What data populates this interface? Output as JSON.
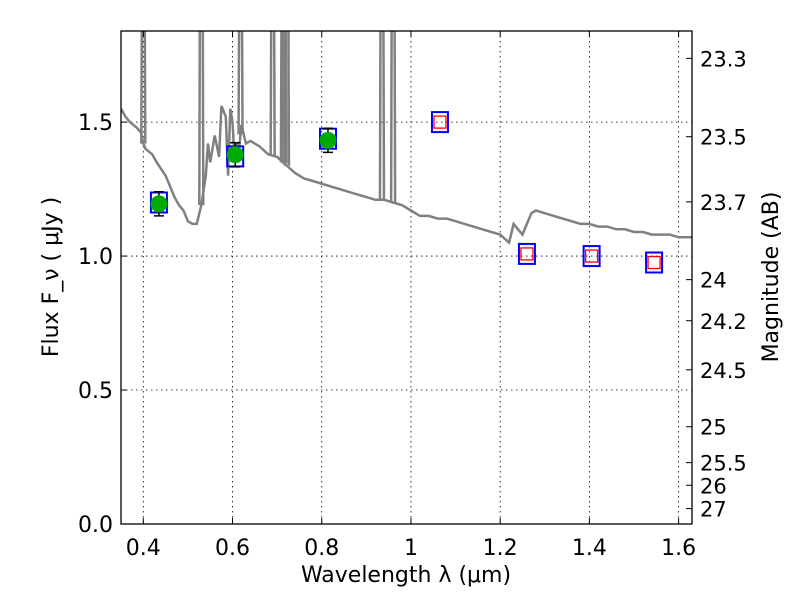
{
  "chart_data": {
    "type": "scatter",
    "xlabel": "Wavelength  λ (μm)",
    "ylabel_left": "Flux  F_ν  ( μJy )",
    "ylabel_right": "Magnitude (AB)",
    "xlim": [
      0.35,
      1.63
    ],
    "ylim": [
      0.0,
      1.84
    ],
    "x_ticks": [
      0.4,
      0.6,
      0.8,
      1.0,
      1.2,
      1.4,
      1.6
    ],
    "x_tick_labels": [
      "0.4",
      "0.6",
      "0.8",
      "1",
      "1.2",
      "1.4",
      "1.6"
    ],
    "y_ticks": [
      0.0,
      0.5,
      1.0,
      1.5
    ],
    "y_tick_labels": [
      "0.0",
      "0.5",
      "1.0",
      "1.5"
    ],
    "grid": true,
    "magnitude_axis": {
      "ticks": [
        23.3,
        23.5,
        23.7,
        24,
        24.2,
        24.5,
        25,
        25.5,
        26,
        27
      ],
      "tick_labels": [
        "23.3",
        "23.5",
        "23.7",
        "24",
        "24.2",
        "24.5",
        "25",
        "25.5",
        "26",
        "27"
      ],
      "zero_point_flux_uJy": 3631000000.0
    },
    "series": [
      {
        "kind": "observed",
        "color": "#00aa00",
        "points": [
          {
            "x": 0.435,
            "y": 1.195,
            "err": 0.045
          },
          {
            "x": 0.606,
            "y": 1.378,
            "err": 0.045
          },
          {
            "x": 0.814,
            "y": 1.432,
            "err": 0.045
          }
        ]
      },
      {
        "kind": "model_filled",
        "color": "#0000ff",
        "points": [
          {
            "x": 0.435,
            "y": 1.2
          },
          {
            "x": 0.606,
            "y": 1.372
          },
          {
            "x": 0.814,
            "y": 1.438
          }
        ]
      },
      {
        "kind": "model_open",
        "color": "#0000ff",
        "inner_color": "#ff0000",
        "points": [
          {
            "x": 1.065,
            "y": 1.5
          },
          {
            "x": 1.26,
            "y": 1.008
          },
          {
            "x": 1.405,
            "y": 1.0
          },
          {
            "x": 1.545,
            "y": 0.976
          }
        ]
      },
      {
        "kind": "sed_spectrum",
        "color": "#808080",
        "points": [
          [
            0.35,
            1.55
          ],
          [
            0.36,
            1.52
          ],
          [
            0.37,
            1.5
          ],
          [
            0.385,
            1.48
          ],
          [
            0.395,
            1.46
          ],
          [
            0.4,
            1.42
          ],
          [
            0.405,
            1.4
          ],
          [
            0.42,
            1.38
          ],
          [
            0.43,
            1.35
          ],
          [
            0.45,
            1.3
          ],
          [
            0.47,
            1.22
          ],
          [
            0.48,
            1.19
          ],
          [
            0.49,
            1.17
          ],
          [
            0.5,
            1.13
          ],
          [
            0.51,
            1.12
          ],
          [
            0.52,
            1.12
          ],
          [
            0.53,
            1.19
          ],
          [
            0.54,
            1.3
          ],
          [
            0.545,
            1.42
          ],
          [
            0.55,
            1.35
          ],
          [
            0.56,
            1.45
          ],
          [
            0.57,
            1.37
          ],
          [
            0.575,
            1.56
          ],
          [
            0.585,
            1.52
          ],
          [
            0.59,
            1.3
          ],
          [
            0.595,
            1.55
          ],
          [
            0.6,
            1.5
          ],
          [
            0.605,
            1.35
          ],
          [
            0.61,
            1.42
          ],
          [
            0.615,
            1.4
          ],
          [
            0.62,
            1.49
          ],
          [
            0.63,
            1.42
          ],
          [
            0.64,
            1.43
          ],
          [
            0.66,
            1.41
          ],
          [
            0.68,
            1.38
          ],
          [
            0.7,
            1.37
          ],
          [
            0.72,
            1.34
          ],
          [
            0.74,
            1.31
          ],
          [
            0.76,
            1.29
          ],
          [
            0.78,
            1.28
          ],
          [
            0.8,
            1.27
          ],
          [
            0.82,
            1.26
          ],
          [
            0.84,
            1.25
          ],
          [
            0.86,
            1.24
          ],
          [
            0.88,
            1.23
          ],
          [
            0.9,
            1.22
          ],
          [
            0.92,
            1.21
          ],
          [
            0.94,
            1.21
          ],
          [
            0.96,
            1.2
          ],
          [
            0.98,
            1.19
          ],
          [
            1.0,
            1.17
          ],
          [
            1.02,
            1.15
          ],
          [
            1.04,
            1.15
          ],
          [
            1.06,
            1.14
          ],
          [
            1.08,
            1.14
          ],
          [
            1.1,
            1.13
          ],
          [
            1.12,
            1.12
          ],
          [
            1.14,
            1.11
          ],
          [
            1.16,
            1.1
          ],
          [
            1.18,
            1.09
          ],
          [
            1.2,
            1.08
          ],
          [
            1.22,
            1.05
          ],
          [
            1.23,
            1.12
          ],
          [
            1.24,
            1.1
          ],
          [
            1.25,
            1.08
          ],
          [
            1.26,
            1.12
          ],
          [
            1.27,
            1.16
          ],
          [
            1.28,
            1.17
          ],
          [
            1.3,
            1.16
          ],
          [
            1.32,
            1.15
          ],
          [
            1.34,
            1.14
          ],
          [
            1.36,
            1.13
          ],
          [
            1.38,
            1.12
          ],
          [
            1.4,
            1.12
          ],
          [
            1.42,
            1.11
          ],
          [
            1.44,
            1.11
          ],
          [
            1.46,
            1.1
          ],
          [
            1.48,
            1.1
          ],
          [
            1.5,
            1.09
          ],
          [
            1.52,
            1.09
          ],
          [
            1.54,
            1.08
          ],
          [
            1.56,
            1.08
          ],
          [
            1.58,
            1.08
          ],
          [
            1.6,
            1.07
          ],
          [
            1.63,
            1.07
          ]
        ],
        "absorption_spikes": [
          0.4,
          0.53,
          0.618,
          0.69,
          0.713,
          0.716,
          0.722,
          0.935,
          0.96
        ]
      }
    ]
  }
}
